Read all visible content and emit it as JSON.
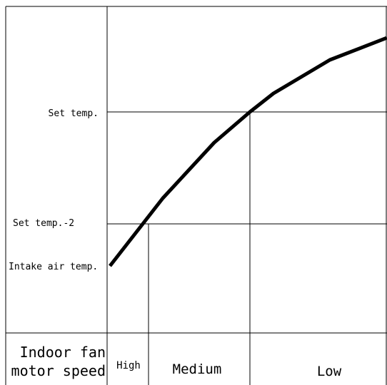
{
  "diagram": {
    "labels": {
      "set_temp": "Set temp.",
      "set_temp_minus_2": "Set temp.-2",
      "intake_air_temp": "Intake air temp.",
      "row_header_line1": "Indoor fan",
      "row_header_line2": "motor speed"
    },
    "speed_zones": [
      {
        "label": "High"
      },
      {
        "label": "Medium"
      },
      {
        "label": "Low"
      }
    ],
    "colors": {
      "curve": "#000000",
      "lines": "#000000",
      "background": "#ffffff"
    }
  }
}
